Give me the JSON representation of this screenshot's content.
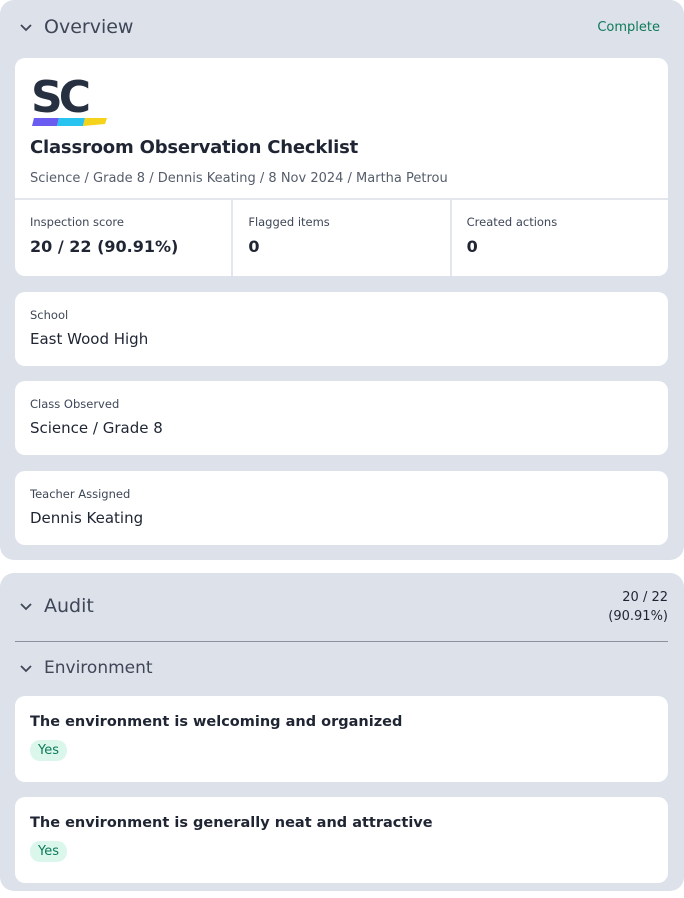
{
  "overview": {
    "title": "Overview",
    "status": "Complete",
    "logo_text": "SC",
    "checklist_title": "Classroom Observation Checklist",
    "meta": "Science / Grade 8 / Dennis Keating / 8 Nov 2024 / Martha Petrou",
    "stats": [
      {
        "label": "Inspection score",
        "value": "20 / 22 (90.91%)"
      },
      {
        "label": "Flagged items",
        "value": "0"
      },
      {
        "label": "Created actions",
        "value": "0"
      }
    ],
    "fields": [
      {
        "label": "School",
        "value": "East Wood High"
      },
      {
        "label": "Class Observed",
        "value": "Science / Grade 8"
      },
      {
        "label": "Teacher Assigned",
        "value": "Dennis Keating"
      }
    ]
  },
  "audit": {
    "title": "Audit",
    "score_line1": "20 / 22",
    "score_line2": "(90.91%)",
    "section": "Environment",
    "questions": [
      {
        "text": "The environment is welcoming and organized",
        "answer": "Yes"
      },
      {
        "text": "The environment is generally neat and attractive",
        "answer": "Yes"
      }
    ]
  },
  "colors": {
    "panel": "#dde1ea",
    "complete": "#0d7a5a",
    "yes_badge_bg": "#dbf7ec"
  }
}
